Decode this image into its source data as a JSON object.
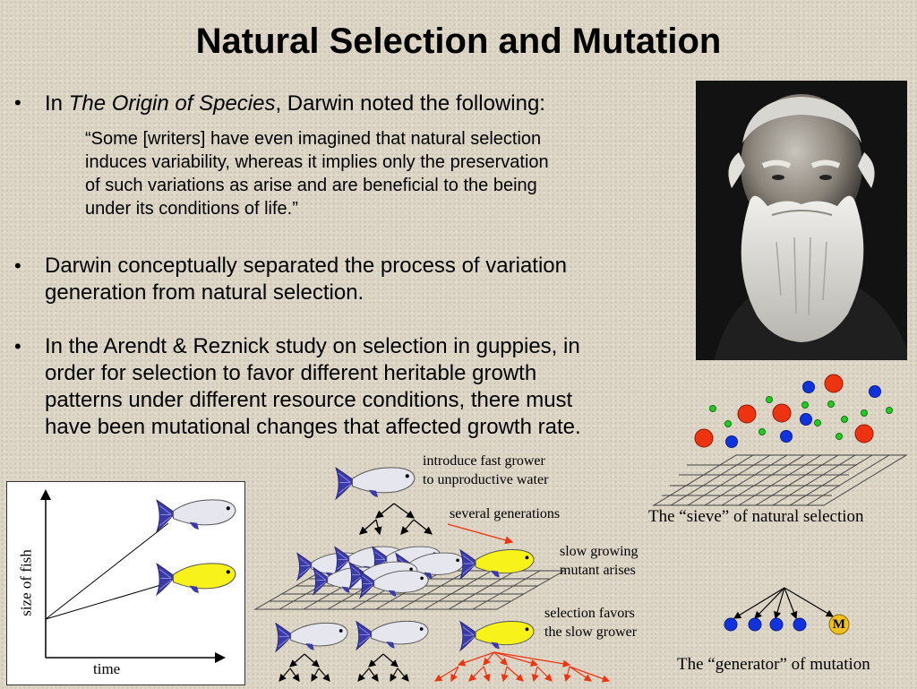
{
  "slide": {
    "title": "Natural Selection and Mutation",
    "bullet1": {
      "prefix": "In ",
      "book": "The Origin of Species",
      "suffix": ", Darwin noted the following:"
    },
    "quote_lines": [
      "“Some [writers] have even imagined that natural selection",
      "induces variability, whereas it implies only the preservation",
      "of such variations as arise and are beneficial to the being",
      "under its conditions of life.”"
    ],
    "bullet2_lines": [
      "Darwin conceptually separated the process of variation",
      "generation from natural selection."
    ],
    "bullet3_lines": [
      "In the Arendt & Reznick study on selection in guppies, in",
      "order for selection to favor different heritable growth",
      "patterns under different resource conditions, there must",
      "have been mutational changes that affected growth rate."
    ],
    "bullet_glyph": "•"
  },
  "chart": {
    "ylabel": "size of fish",
    "xlabel": "time"
  },
  "diagram": {
    "label_intro_line1": "introduce fast grower",
    "label_intro_line2": "to unproductive water",
    "label_generations": "several generations",
    "label_mutant_line1": "slow growing",
    "label_mutant_line2": "mutant arises",
    "label_selection_line1": "selection favors",
    "label_selection_line2": "the slow grower",
    "sieve_caption": "The “sieve” of natural selection",
    "generator_caption": "The “generator” of mutation",
    "mutation_badge": "M"
  },
  "colors": {
    "fish_white": "#e6e6ee",
    "fish_yellow": "#f6f21a",
    "fish_tail": "#3a3aa8",
    "ball_red": "#ee3311",
    "ball_blue": "#1133dd",
    "ball_green": "#22cc22",
    "arrow_red": "#ee3311"
  }
}
